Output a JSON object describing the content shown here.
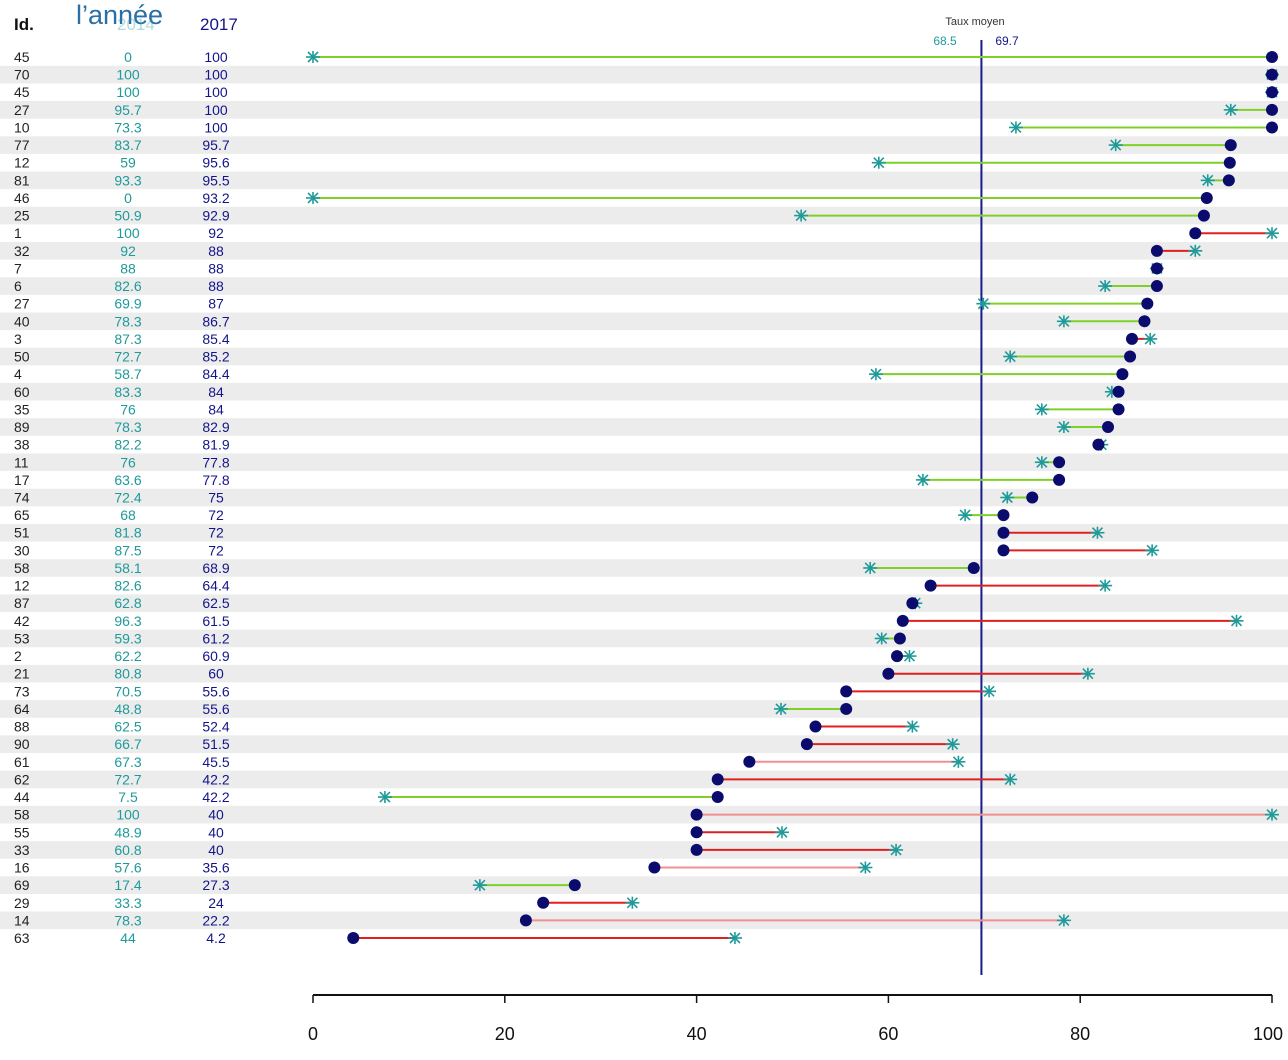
{
  "header": {
    "annee_label": "l’année",
    "id_label": "Id.",
    "col_2014": "2014",
    "col_2017": "2017",
    "avg_title": "Taux moyen",
    "avg_2014": "68.5",
    "avg_2017": "69.7"
  },
  "colors": {
    "dot_2017": "#0b0b6e",
    "marker_2014": "#1f9a9a",
    "increase_line": "#7fd12a",
    "decrease_line": "#e02020",
    "decrease_light": "#f09090",
    "avg_line": "#1a1a8a",
    "stripe": "#ececec"
  },
  "chart_data": {
    "type": "dumbbell",
    "xlim": [
      0,
      100
    ],
    "x_ticks": [
      0,
      20,
      40,
      60,
      80,
      100
    ],
    "x_tick_labels": [
      "0",
      "20",
      "40",
      "60",
      "80",
      "100"
    ],
    "avg_2017": 69.7,
    "rows": [
      {
        "id": "45",
        "v2014": "0",
        "v2017": "100",
        "x14": 0,
        "x17": 100
      },
      {
        "id": "70",
        "v2014": "100",
        "v2017": "100",
        "x14": 100,
        "x17": 100
      },
      {
        "id": "45",
        "v2014": "100",
        "v2017": "100",
        "x14": 100,
        "x17": 100
      },
      {
        "id": "27",
        "v2014": "95.7",
        "v2017": "100",
        "x14": 95.7,
        "x17": 100
      },
      {
        "id": "10",
        "v2014": "73.3",
        "v2017": "100",
        "x14": 73.3,
        "x17": 100
      },
      {
        "id": "77",
        "v2014": "83.7",
        "v2017": "95.7",
        "x14": 83.7,
        "x17": 95.7
      },
      {
        "id": "12",
        "v2014": "59",
        "v2017": "95.6",
        "x14": 59,
        "x17": 95.6
      },
      {
        "id": "81",
        "v2014": "93.3",
        "v2017": "95.5",
        "x14": 93.3,
        "x17": 95.5
      },
      {
        "id": "46",
        "v2014": "0",
        "v2017": "93.2",
        "x14": 0,
        "x17": 93.2
      },
      {
        "id": "25",
        "v2014": "50.9",
        "v2017": "92.9",
        "x14": 50.9,
        "x17": 92.9
      },
      {
        "id": "1",
        "v2014": "100",
        "v2017": "92",
        "x14": 100,
        "x17": 92
      },
      {
        "id": "32",
        "v2014": "92",
        "v2017": "88",
        "x14": 92,
        "x17": 88
      },
      {
        "id": "7",
        "v2014": "88",
        "v2017": "88",
        "x14": 88,
        "x17": 88
      },
      {
        "id": "6",
        "v2014": "82.6",
        "v2017": "88",
        "x14": 82.6,
        "x17": 88
      },
      {
        "id": "27",
        "v2014": "69.9",
        "v2017": "87",
        "x14": 69.9,
        "x17": 87
      },
      {
        "id": "40",
        "v2014": "78.3",
        "v2017": "86.7",
        "x14": 78.3,
        "x17": 86.7
      },
      {
        "id": "3",
        "v2014": "87.3",
        "v2017": "85.4",
        "x14": 87.3,
        "x17": 85.4
      },
      {
        "id": "50",
        "v2014": "72.7",
        "v2017": "85.2",
        "x14": 72.7,
        "x17": 85.2
      },
      {
        "id": "4",
        "v2014": "58.7",
        "v2017": "84.4",
        "x14": 58.7,
        "x17": 84.4
      },
      {
        "id": "60",
        "v2014": "83.3",
        "v2017": "84",
        "x14": 83.3,
        "x17": 84
      },
      {
        "id": "35",
        "v2014": "76",
        "v2017": "84",
        "x14": 76,
        "x17": 84
      },
      {
        "id": "89",
        "v2014": "78.3",
        "v2017": "82.9",
        "x14": 78.3,
        "x17": 82.9
      },
      {
        "id": "38",
        "v2014": "82.2",
        "v2017": "81.9",
        "x14": 82.2,
        "x17": 81.9
      },
      {
        "id": "11",
        "v2014": "76",
        "v2017": "77.8",
        "x14": 76,
        "x17": 77.8
      },
      {
        "id": "17",
        "v2014": "63.6",
        "v2017": "77.8",
        "x14": 63.6,
        "x17": 77.8
      },
      {
        "id": "74",
        "v2014": "72.4",
        "v2017": "75",
        "x14": 72.4,
        "x17": 75
      },
      {
        "id": "65",
        "v2014": "68",
        "v2017": "72",
        "x14": 68,
        "x17": 72
      },
      {
        "id": "51",
        "v2014": "81.8",
        "v2017": "72",
        "x14": 81.8,
        "x17": 72
      },
      {
        "id": "30",
        "v2014": "87.5",
        "v2017": "72",
        "x14": 87.5,
        "x17": 72
      },
      {
        "id": "58",
        "v2014": "58.1",
        "v2017": "68.9",
        "x14": 58.1,
        "x17": 68.9
      },
      {
        "id": "12",
        "v2014": "82.6",
        "v2017": "64.4",
        "x14": 82.6,
        "x17": 64.4
      },
      {
        "id": "87",
        "v2014": "62.8",
        "v2017": "62.5",
        "x14": 62.8,
        "x17": 62.5
      },
      {
        "id": "42",
        "v2014": "96.3",
        "v2017": "61.5",
        "x14": 96.3,
        "x17": 61.5
      },
      {
        "id": "53",
        "v2014": "59.3",
        "v2017": "61.2",
        "x14": 59.3,
        "x17": 61.2
      },
      {
        "id": "2",
        "v2014": "62.2",
        "v2017": "60.9",
        "x14": 62.2,
        "x17": 60.9
      },
      {
        "id": "21",
        "v2014": "80.8",
        "v2017": "60",
        "x14": 80.8,
        "x17": 60
      },
      {
        "id": "73",
        "v2014": "70.5",
        "v2017": "55.6",
        "x14": 70.5,
        "x17": 55.6
      },
      {
        "id": "64",
        "v2014": "48.8",
        "v2017": "55.6",
        "x14": 48.8,
        "x17": 55.6
      },
      {
        "id": "88",
        "v2014": "62.5",
        "v2017": "52.4",
        "x14": 62.5,
        "x17": 52.4
      },
      {
        "id": "90",
        "v2014": "66.7",
        "v2017": "51.5",
        "x14": 66.7,
        "x17": 51.5
      },
      {
        "id": "61",
        "v2014": "67.3",
        "v2017": "45.5",
        "x14": 67.3,
        "x17": 45.5
      },
      {
        "id": "62",
        "v2014": "72.7",
        "v2017": "42.2",
        "x14": 72.7,
        "x17": 42.2
      },
      {
        "id": "44",
        "v2014": "7.5",
        "v2017": "42.2",
        "x14": 7.5,
        "x17": 42.2
      },
      {
        "id": "58",
        "v2014": "100",
        "v2017": "40",
        "x14": 100,
        "x17": 40
      },
      {
        "id": "55",
        "v2014": "48.9",
        "v2017": "40",
        "x14": 48.9,
        "x17": 40
      },
      {
        "id": "33",
        "v2014": "60.8",
        "v2017": "40",
        "x14": 60.8,
        "x17": 40
      },
      {
        "id": "16",
        "v2014": "57.6",
        "v2017": "35.6",
        "x14": 57.6,
        "x17": 35.6
      },
      {
        "id": "69",
        "v2014": "17.4",
        "v2017": "27.3",
        "x14": 17.4,
        "x17": 27.3
      },
      {
        "id": "29",
        "v2014": "33.3",
        "v2017": "24",
        "x14": 33.3,
        "x17": 24
      },
      {
        "id": "14",
        "v2014": "78.3",
        "v2017": "22.2",
        "x14": 78.3,
        "x17": 22.2
      },
      {
        "id": "63",
        "v2014": "44",
        "v2017": "4.2",
        "x14": 44,
        "x17": 4.2
      }
    ]
  }
}
